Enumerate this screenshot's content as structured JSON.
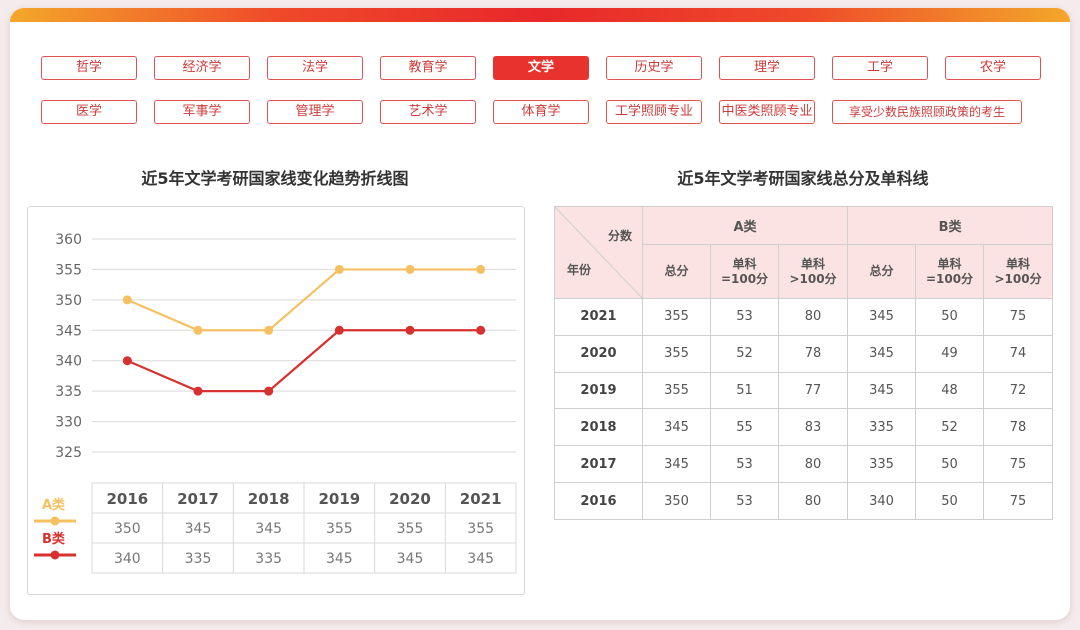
{
  "tags_row1": [
    "哲学",
    "经济学",
    "法学",
    "教育学",
    "文学",
    "历史学",
    "理学",
    "工学",
    "农学"
  ],
  "tags_row2": [
    "医学",
    "军事学",
    "管理学",
    "艺术学",
    "体育学",
    "工学照顾专业",
    "中医类照顾专业",
    "享受少数民族照顾政策的考生"
  ],
  "active_tag": "文学",
  "colors": {
    "accent": "#e8322d",
    "series_a": "#f5c060",
    "series_b": "#d6312f",
    "header_bg": "#fbe3e3"
  },
  "chart_title": "近5年文学考研国家线变化趋势折线图",
  "table_title": "近5年文学考研国家线总分及单科线",
  "chart_data": {
    "type": "line",
    "title": "近5年文学考研国家线变化趋势折线图",
    "categories": [
      "2016",
      "2017",
      "2018",
      "2019",
      "2020",
      "2021"
    ],
    "series": [
      {
        "name": "A类",
        "values": [
          350,
          345,
          345,
          355,
          355,
          355
        ]
      },
      {
        "name": "B类",
        "values": [
          340,
          335,
          335,
          345,
          345,
          345
        ]
      }
    ],
    "ylim": [
      325,
      360
    ],
    "yticks": [
      "360",
      "355",
      "350",
      "345",
      "340",
      "335",
      "330",
      "325"
    ],
    "grid": true,
    "legend": "bottom-left"
  },
  "table": {
    "corner_top": "分数",
    "corner_bottom": "年份",
    "group_a": "A类",
    "group_b": "B类",
    "sub_total": "总分",
    "sub_eq_line1": "单科",
    "sub_eq_line2": "=100分",
    "sub_gt_line1": "单科",
    "sub_gt_line2": ">100分",
    "rows": [
      {
        "year": "2021",
        "cells": [
          "355",
          "53",
          "80",
          "345",
          "50",
          "75"
        ]
      },
      {
        "year": "2020",
        "cells": [
          "355",
          "52",
          "78",
          "345",
          "49",
          "74"
        ]
      },
      {
        "year": "2019",
        "cells": [
          "355",
          "51",
          "77",
          "345",
          "48",
          "72"
        ]
      },
      {
        "year": "2018",
        "cells": [
          "345",
          "55",
          "83",
          "335",
          "52",
          "78"
        ]
      },
      {
        "year": "2017",
        "cells": [
          "345",
          "53",
          "80",
          "335",
          "50",
          "75"
        ]
      },
      {
        "year": "2016",
        "cells": [
          "350",
          "53",
          "80",
          "340",
          "50",
          "75"
        ]
      }
    ]
  }
}
